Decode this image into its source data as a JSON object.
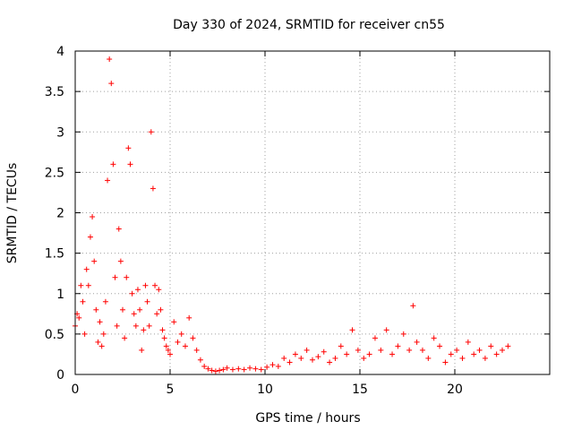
{
  "chart_data": {
    "type": "scatter",
    "title": "Day 330 of 2024, SRMTID for receiver cn55",
    "xlabel": "GPS time / hours",
    "ylabel": "SRMTID / TECUs",
    "xlim": [
      0,
      25
    ],
    "ylim": [
      0,
      4
    ],
    "xticks": [
      0,
      5,
      10,
      15,
      20
    ],
    "yticks": [
      0,
      0.5,
      1,
      1.5,
      2,
      2.5,
      3,
      3.5,
      4
    ],
    "xtick_labels": [
      "0",
      "5",
      "10",
      "15",
      "20"
    ],
    "ytick_labels": [
      "0",
      "0.5",
      "1",
      "1.5",
      "2",
      "2.5",
      "3",
      "3.5",
      "4"
    ],
    "grid": true,
    "marker": "+",
    "color": "#ff0000",
    "series": [
      {
        "name": "SRMTID",
        "x": [
          0.0,
          0.1,
          0.2,
          0.3,
          0.4,
          0.5,
          0.6,
          0.7,
          0.8,
          0.9,
          1.0,
          1.1,
          1.2,
          1.3,
          1.4,
          1.5,
          1.6,
          1.7,
          1.8,
          1.9,
          2.0,
          2.1,
          2.2,
          2.3,
          2.4,
          2.5,
          2.6,
          2.7,
          2.8,
          2.9,
          3.0,
          3.1,
          3.2,
          3.3,
          3.4,
          3.5,
          3.6,
          3.7,
          3.8,
          3.9,
          4.0,
          4.1,
          4.2,
          4.3,
          4.4,
          4.5,
          4.6,
          4.7,
          4.8,
          4.9,
          5.0,
          5.2,
          5.4,
          5.6,
          5.8,
          6.0,
          6.2,
          6.4,
          6.6,
          6.8,
          7.0,
          7.2,
          7.4,
          7.6,
          7.8,
          8.0,
          8.3,
          8.6,
          8.9,
          9.2,
          9.5,
          9.8,
          10.1,
          10.4,
          10.7,
          11.0,
          11.3,
          11.6,
          11.9,
          12.2,
          12.5,
          12.8,
          13.1,
          13.4,
          13.7,
          14.0,
          14.3,
          14.6,
          14.9,
          15.2,
          15.5,
          15.8,
          16.1,
          16.4,
          16.7,
          17.0,
          17.3,
          17.6,
          17.8,
          18.0,
          18.3,
          18.6,
          18.9,
          19.2,
          19.5,
          19.8,
          20.1,
          20.4,
          20.7,
          21.0,
          21.3,
          21.6,
          21.9,
          22.2,
          22.5,
          22.8
        ],
        "y": [
          0.6,
          0.75,
          0.7,
          1.1,
          0.9,
          0.5,
          1.3,
          1.1,
          1.7,
          1.95,
          1.4,
          0.8,
          0.4,
          0.65,
          0.35,
          0.5,
          0.9,
          2.4,
          3.9,
          3.6,
          2.6,
          1.2,
          0.6,
          1.8,
          1.4,
          0.8,
          0.45,
          1.2,
          2.8,
          2.6,
          1.0,
          0.75,
          0.6,
          1.05,
          0.8,
          0.3,
          0.55,
          1.1,
          0.9,
          0.6,
          3.0,
          2.3,
          1.1,
          0.75,
          1.05,
          0.8,
          0.55,
          0.45,
          0.35,
          0.3,
          0.25,
          0.65,
          0.4,
          0.5,
          0.35,
          0.7,
          0.45,
          0.3,
          0.18,
          0.1,
          0.07,
          0.05,
          0.04,
          0.05,
          0.06,
          0.08,
          0.06,
          0.07,
          0.06,
          0.08,
          0.07,
          0.06,
          0.09,
          0.12,
          0.1,
          0.2,
          0.15,
          0.25,
          0.2,
          0.3,
          0.18,
          0.22,
          0.28,
          0.15,
          0.2,
          0.35,
          0.25,
          0.55,
          0.3,
          0.2,
          0.25,
          0.45,
          0.3,
          0.55,
          0.25,
          0.35,
          0.5,
          0.3,
          0.85,
          0.4,
          0.3,
          0.2,
          0.45,
          0.35,
          0.15,
          0.25,
          0.3,
          0.2,
          0.4,
          0.25,
          0.3,
          0.2,
          0.35,
          0.25,
          0.3,
          0.35
        ]
      }
    ]
  }
}
